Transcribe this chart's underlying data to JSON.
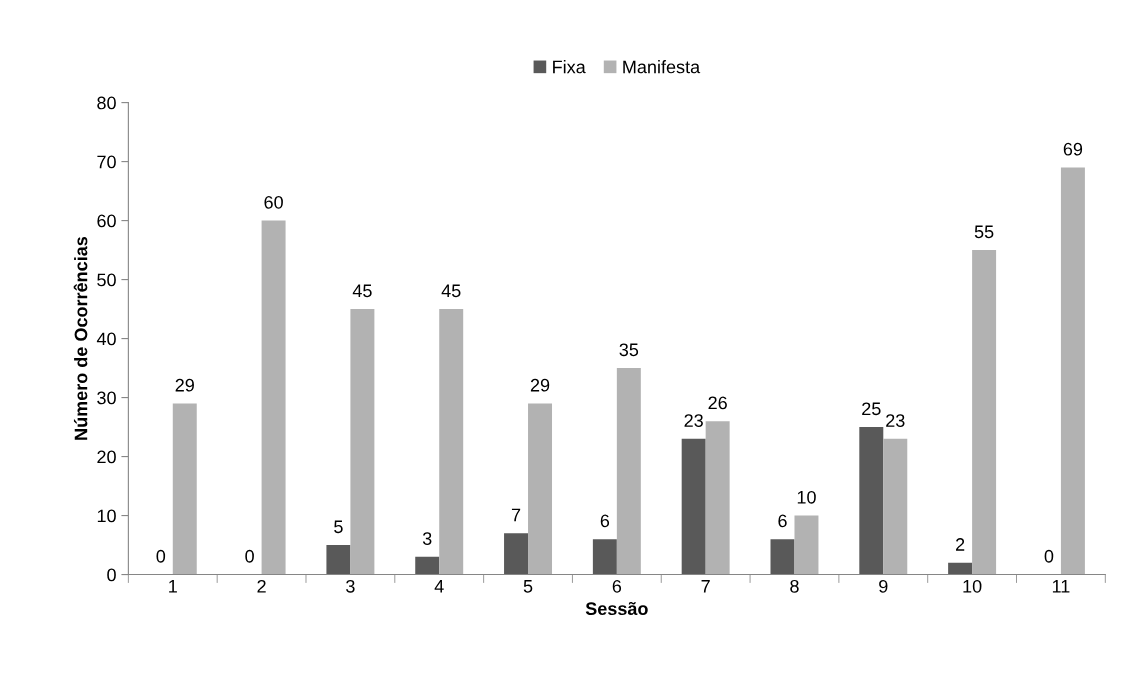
{
  "chart_data": {
    "type": "bar",
    "xlabel": "Sessão",
    "ylabel": "Número de Ocorrências",
    "categories": [
      "1",
      "2",
      "3",
      "4",
      "5",
      "6",
      "7",
      "8",
      "9",
      "10",
      "11"
    ],
    "series": [
      {
        "name": "Fixa",
        "color": "#595959",
        "values": [
          0,
          0,
          5,
          3,
          7,
          6,
          23,
          6,
          25,
          2,
          0
        ]
      },
      {
        "name": "Manifesta",
        "color": "#b2b2b2",
        "values": [
          29,
          60,
          45,
          45,
          29,
          35,
          26,
          10,
          23,
          55,
          69
        ]
      }
    ],
    "ylim": [
      0,
      80
    ],
    "yticks": [
      0,
      10,
      20,
      30,
      40,
      50,
      60,
      70,
      80
    ],
    "grid": false,
    "legend": "top",
    "data_labels": true
  }
}
